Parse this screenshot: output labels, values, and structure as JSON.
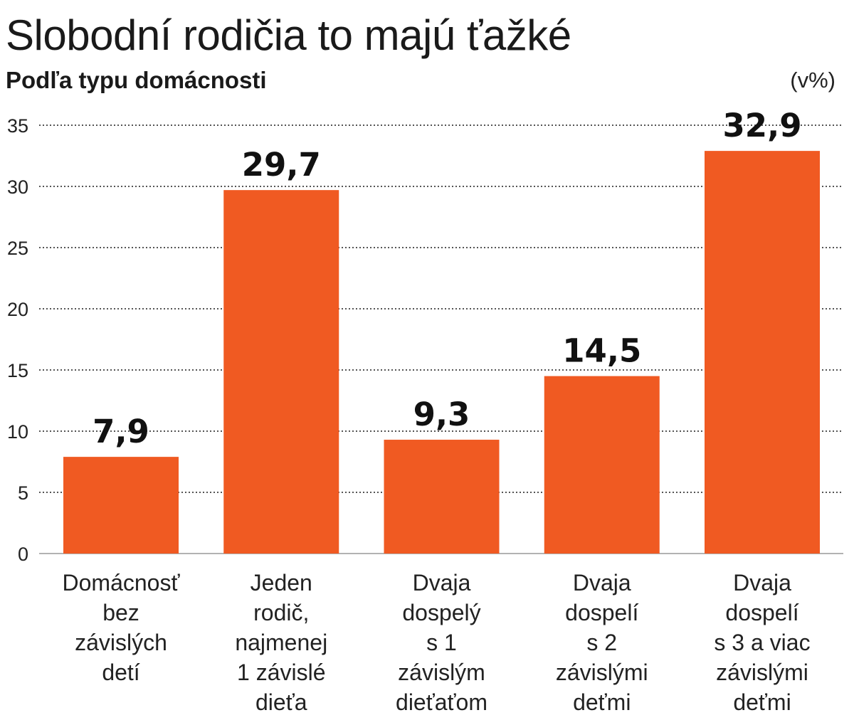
{
  "chart_data": {
    "type": "bar",
    "title": "Slobodní rodičia to majú ťažké",
    "subtitle": "Podľa typu domácnosti",
    "unit": "(v%)",
    "categories": [
      [
        "Domácnosť",
        "bez",
        "závislých",
        "detí"
      ],
      [
        "Jeden",
        "rodič,",
        "najmenej",
        "1 závislé",
        "dieťa"
      ],
      [
        "Dvaja",
        "dospelý",
        "s 1",
        "závislým",
        "dieťaťom"
      ],
      [
        "Dvaja",
        "dospelí",
        "s 2",
        "závislými",
        "deťmi"
      ],
      [
        "Dvaja",
        "dospelí",
        "s 3 a viac",
        "závislými",
        "deťmi"
      ]
    ],
    "values": [
      7.9,
      29.7,
      9.3,
      14.5,
      32.9
    ],
    "value_labels": [
      "7,9",
      "29,7",
      "9,3",
      "14,5",
      "32,9"
    ],
    "ylim": [
      0,
      35
    ],
    "yticks": [
      0,
      5,
      10,
      15,
      20,
      25,
      30,
      35
    ],
    "grid": true,
    "colors": {
      "bar": "#f05a22",
      "grid": "#555555",
      "axis": "#999999"
    }
  }
}
